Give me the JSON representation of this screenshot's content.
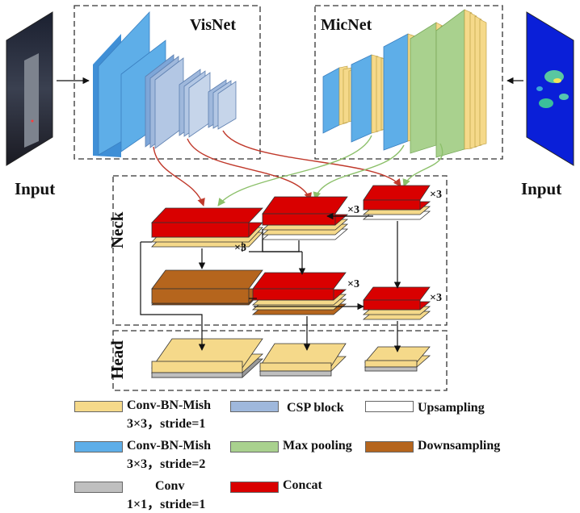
{
  "labels": {
    "visnet": "VisNet",
    "micnet": "MicNet",
    "input_left": "Input",
    "input_right": "Input",
    "neck": "Neck",
    "head": "Head",
    "repeat": "×3"
  },
  "legend": [
    {
      "id": "conv-bn-mish-s1",
      "line1": "Conv-BN-Mish",
      "line2": "3×3，stride=1",
      "color": "#f5d98a"
    },
    {
      "id": "conv-bn-mish-s2",
      "line1": "Conv-BN-Mish",
      "line2": "3×3，stride=2",
      "color": "#5eaee8"
    },
    {
      "id": "conv-1x1",
      "line1": "Conv",
      "line2": "1×1，stride=1",
      "color": "#bfbfbf"
    },
    {
      "id": "csp-block",
      "line1": "CSP block",
      "color": "#9fb8dc"
    },
    {
      "id": "max-pooling",
      "line1": "Max pooling",
      "color": "#a9d18e"
    },
    {
      "id": "concat",
      "line1": "Concat",
      "color": "#d90000"
    },
    {
      "id": "upsampling",
      "line1": "Upsampling",
      "color": "#ffffff"
    },
    {
      "id": "downsampling",
      "line1": "Downsampling",
      "color": "#b5651d"
    }
  ],
  "colors": {
    "conv_s1": "#f5d98a",
    "conv_s2": "#5eaee8",
    "conv_1x1": "#bfbfbf",
    "csp": "#9fb8dc",
    "maxpool": "#a9d18e",
    "concat": "#d90000",
    "upsampling": "#ffffff",
    "downsampling": "#b5651d",
    "arrow_visnet": "#c0392b",
    "arrow_micnet": "#8cc06a"
  }
}
